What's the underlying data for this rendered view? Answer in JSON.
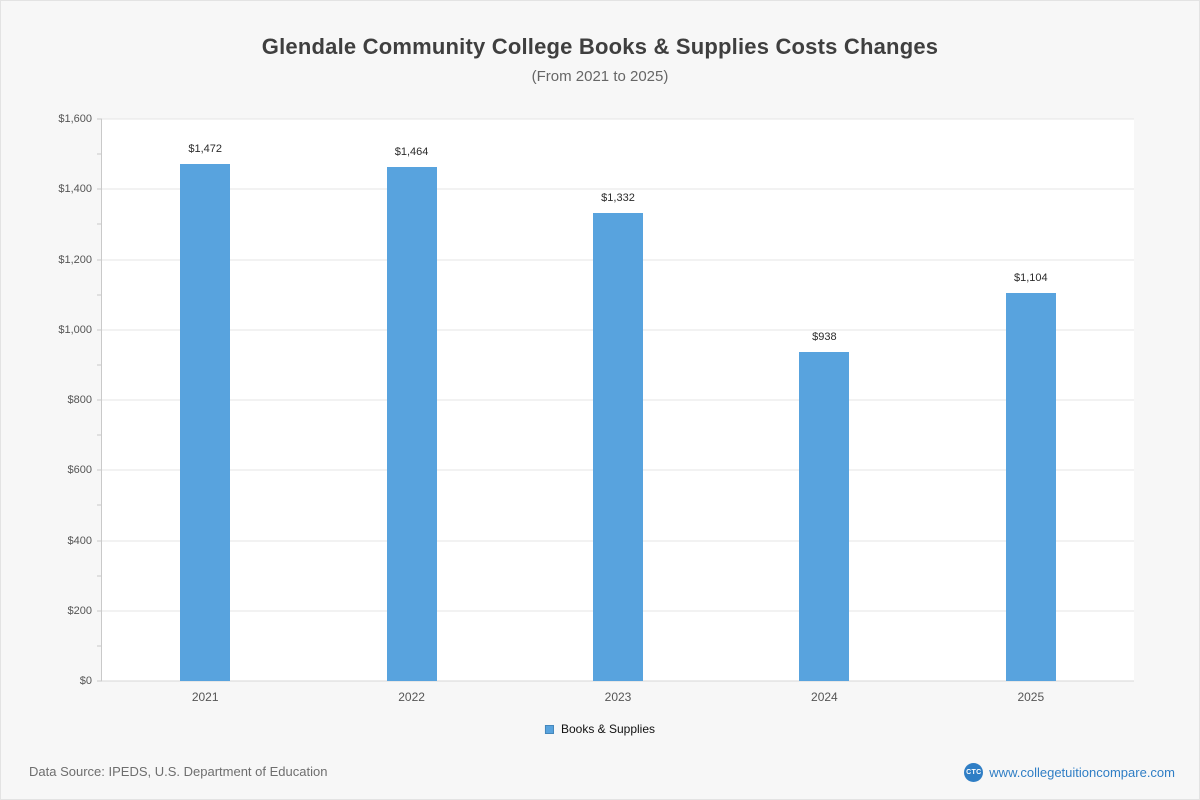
{
  "title": "Glendale Community College Books & Supplies Costs Changes",
  "subtitle": "(From 2021 to 2025)",
  "chart_data": {
    "type": "bar",
    "categories": [
      "2021",
      "2022",
      "2023",
      "2024",
      "2025"
    ],
    "values": [
      1472,
      1464,
      1332,
      938,
      1104
    ],
    "value_labels": [
      "$1,472",
      "$1,464",
      "$1,332",
      "$938",
      "$1,104"
    ],
    "series_name": "Books & Supplies",
    "title": "Glendale Community College Books & Supplies Costs Changes",
    "subtitle": "(From 2021 to 2025)",
    "xlabel": "",
    "ylabel": "",
    "ylim": [
      0,
      1600
    ],
    "ytick_step": 200,
    "minor_tick_step": 100,
    "ytick_labels": [
      "$0",
      "$200",
      "$400",
      "$600",
      "$800",
      "$1,000",
      "$1,200",
      "$1,400",
      "$1,600"
    ],
    "grid": true,
    "legend_position": "bottom",
    "bar_color": "#58a3de"
  },
  "legend": {
    "label": "Books & Supplies",
    "marker_color": "#58a3de"
  },
  "footer": {
    "source": "Data Source: IPEDS, U.S. Department of Education",
    "logo_text": "CTC",
    "website": "www.collegetuitioncompare.com"
  },
  "colors": {
    "page_background": "#f7f7f7",
    "plot_background": "#ffffff",
    "bar": "#58a3de",
    "link": "#2f7ec5",
    "title_text": "#3f3f3f",
    "axis_text": "#555555"
  }
}
